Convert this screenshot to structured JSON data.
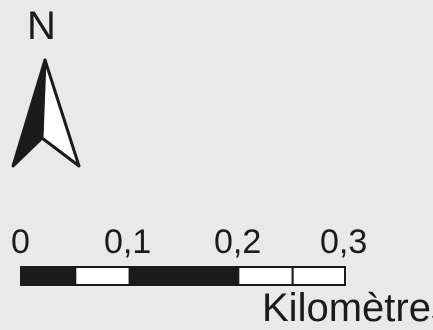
{
  "map": {
    "north_label": "N",
    "north_arrow_icon": "north-arrow-icon",
    "scale_bar": {
      "ticks": [
        "0",
        "0,1",
        "0,2",
        "0,3"
      ],
      "units": "Kilomètres",
      "pattern": [
        "filled",
        "empty",
        "filled",
        "filled",
        "empty",
        "empty"
      ]
    },
    "colors": {
      "background": "#e9e9e9",
      "ink": "#1b1b1b",
      "empty": "#ffffff"
    }
  }
}
